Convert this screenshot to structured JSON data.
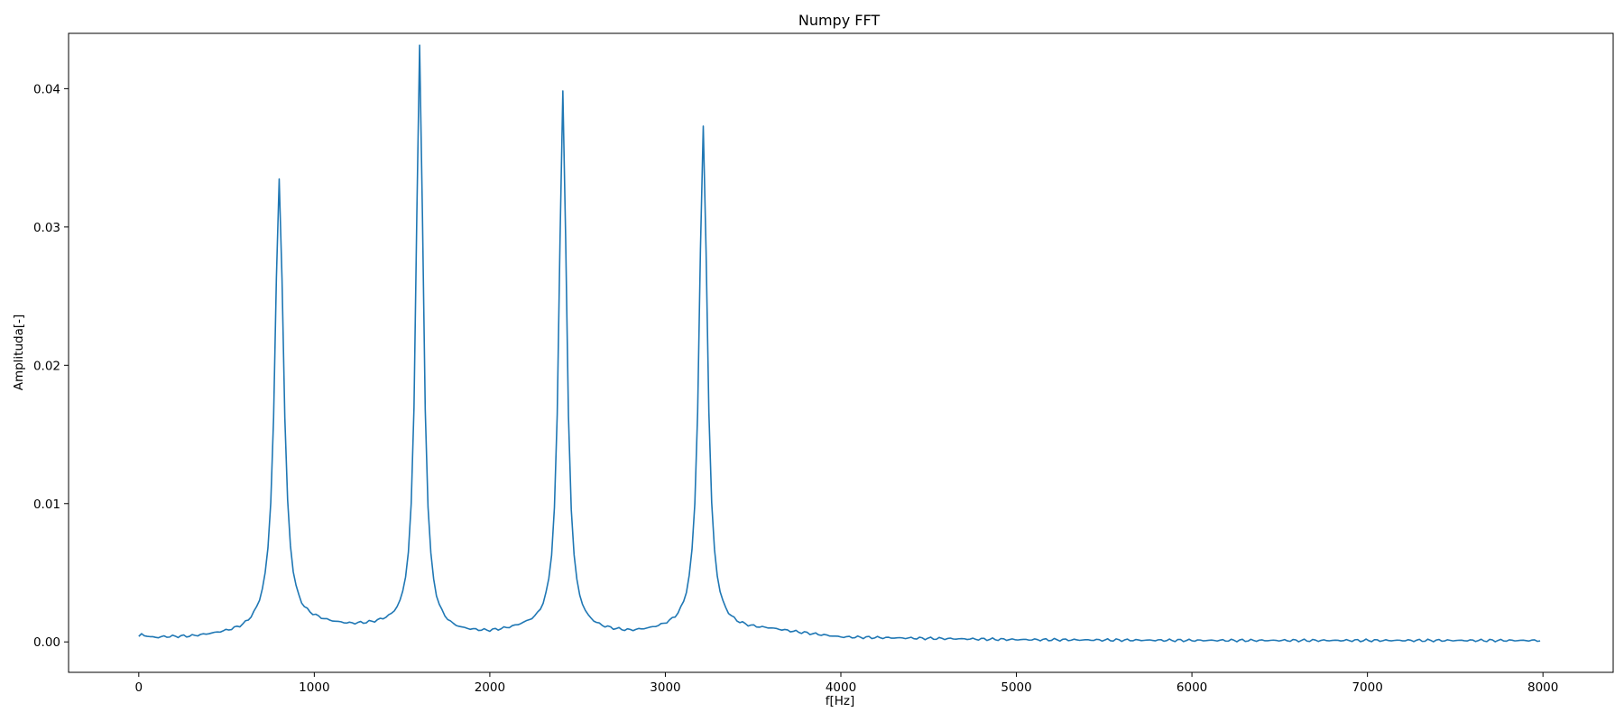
{
  "chart_data": {
    "type": "line",
    "title": "Numpy FFT",
    "xlabel": "f[Hz]",
    "ylabel": "Amplituda[-]",
    "xlim": [
      -400,
      8400
    ],
    "ylim": [
      -0.0022,
      0.044
    ],
    "xticks": [
      0,
      1000,
      2000,
      3000,
      4000,
      5000,
      6000,
      7000,
      8000
    ],
    "yticks": [
      0.0,
      0.01,
      0.02,
      0.03,
      0.04
    ],
    "ytick_labels": [
      "0.00",
      "0.01",
      "0.02",
      "0.03",
      "0.04"
    ],
    "grid": false,
    "color": "#1f77b4",
    "series": [
      {
        "x_start": 0,
        "x_end": 7984,
        "x_step": 16,
        "baseline_points": [
          [
            0,
            0.0003
          ],
          [
            16,
            0.0005
          ],
          [
            32,
            0.0004
          ],
          [
            64,
            0.0003
          ],
          [
            100,
            0.00025
          ],
          [
            150,
            0.0003
          ],
          [
            200,
            0.0003
          ],
          [
            300,
            0.0003
          ],
          [
            400,
            0.0004
          ],
          [
            500,
            0.0005
          ],
          [
            600,
            0.0006
          ],
          [
            700,
            0.0009
          ],
          [
            1000,
            0.0012
          ],
          [
            1200,
            0.001
          ],
          [
            1400,
            0.001
          ],
          [
            1800,
            0.0005
          ],
          [
            2000,
            0.0005
          ],
          [
            2200,
            0.0008
          ],
          [
            2600,
            0.0006
          ],
          [
            2800,
            0.0005
          ],
          [
            3000,
            0.0007
          ],
          [
            3600,
            0.0008
          ],
          [
            4000,
            0.0003
          ],
          [
            5000,
            0.00015
          ],
          [
            6000,
            0.0001
          ],
          [
            7000,
            0.0001
          ],
          [
            7600,
            0.0001
          ],
          [
            7984,
            0.0001
          ]
        ],
        "peaks": [
          {
            "x": 800,
            "y": 0.0324,
            "gamma": 30
          },
          {
            "x": 1600,
            "y": 0.0423,
            "gamma": 25
          },
          {
            "x": 2416,
            "y": 0.0391,
            "gamma": 26
          },
          {
            "x": 3216,
            "y": 0.0365,
            "gamma": 28
          }
        ]
      }
    ]
  }
}
